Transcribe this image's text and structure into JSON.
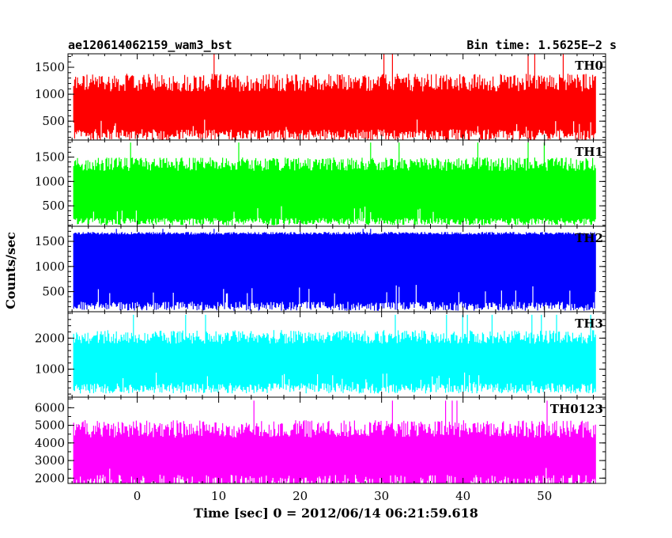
{
  "chart_data": {
    "type": "line",
    "title": "ae120614062159_wam3_bst",
    "subtitle": "Bin time: 1.5625E−2 s",
    "xlabel": "Time [sec] 0 = 2012/06/14 06:21:59.618",
    "ylabel": "Counts/sec",
    "xlim": [
      -8.5,
      57.5
    ],
    "x_ticks": [
      0,
      10,
      20,
      30,
      40,
      50
    ],
    "x_tick_labels": [
      "0",
      "10",
      "20",
      "30",
      "40",
      "50"
    ],
    "data_x_range": [
      -7.8,
      56.3
    ],
    "grid": false,
    "panels": [
      {
        "name": "TH0",
        "color": "#ff0000",
        "ylim": [
          150,
          1750
        ],
        "yticks": [
          500,
          1000,
          1500
        ],
        "base": 350,
        "top_typical": 1150,
        "top_peak": 1750
      },
      {
        "name": "TH1",
        "color": "#00ff00",
        "ylim": [
          80,
          1850
        ],
        "yticks": [
          500,
          1000,
          1500
        ],
        "base": 250,
        "top_typical": 1300,
        "top_peak": 1800
      },
      {
        "name": "TH2",
        "color": "#0000ff",
        "ylim": [
          100,
          1800
        ],
        "yticks": [
          500,
          1000,
          1500
        ],
        "base": 300,
        "top_typical": 1650,
        "top_peak": 1750
      },
      {
        "name": "TH3",
        "color": "#00ffff",
        "ylim": [
          100,
          2850
        ],
        "yticks": [
          1000,
          2000
        ],
        "base": 550,
        "top_typical": 1950,
        "top_peak": 2750
      },
      {
        "name": "TH0123",
        "color": "#ff00ff",
        "ylim": [
          1700,
          6600
        ],
        "yticks": [
          2000,
          3000,
          4000,
          5000,
          6000
        ],
        "base": 2200,
        "top_typical": 4600,
        "top_peak": 6400
      }
    ]
  }
}
